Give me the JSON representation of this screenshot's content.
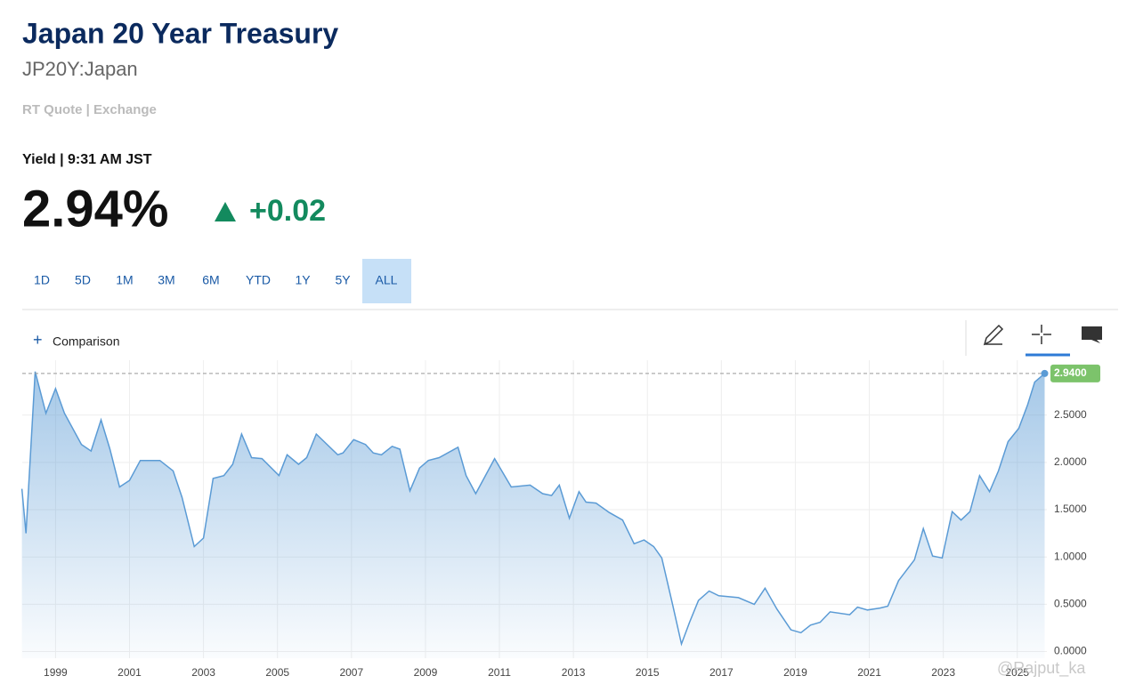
{
  "header": {
    "title": "Japan 20 Year Treasury",
    "symbol": "JP20Y:Japan",
    "quote_type": "RT Quote | Exchange",
    "yield_label": "Yield | 9:31 AM JST",
    "price": "2.94%",
    "change": "+0.02"
  },
  "ranges": [
    "1D",
    "5D",
    "1M",
    "3M",
    "6M",
    "YTD",
    "1Y",
    "5Y",
    "ALL"
  ],
  "toolbar": {
    "comparison": "Comparison"
  },
  "watermark": "@Rajput_ka",
  "chart_data": {
    "type": "area",
    "color": "#5b9bd5",
    "grid": true,
    "x": [
      1998.09,
      1998.2,
      1998.45,
      1998.74,
      1999.0,
      1999.24,
      1999.7,
      1999.96,
      2000.23,
      2000.47,
      2000.73,
      2001.0,
      2001.29,
      2001.82,
      2002.18,
      2002.42,
      2002.75,
      2003.0,
      2003.26,
      2003.55,
      2003.79,
      2004.03,
      2004.3,
      2004.58,
      2005.04,
      2005.26,
      2005.57,
      2005.79,
      2006.05,
      2006.63,
      2006.77,
      2007.06,
      2007.38,
      2007.59,
      2007.81,
      2008.1,
      2008.31,
      2008.58,
      2008.84,
      2009.08,
      2009.37,
      2009.88,
      2010.1,
      2010.36,
      2010.87,
      2011.32,
      2011.83,
      2012.17,
      2012.41,
      2012.62,
      2012.89,
      2013.15,
      2013.34,
      2013.61,
      2013.97,
      2014.33,
      2014.64,
      2014.91,
      2015.17,
      2015.39,
      2015.68,
      2015.92,
      2016.14,
      2016.38,
      2016.67,
      2016.93,
      2017.46,
      2017.89,
      2018.18,
      2018.5,
      2018.88,
      2019.15,
      2019.41,
      2019.67,
      2019.94,
      2020.47,
      2020.68,
      2020.95,
      2021.29,
      2021.5,
      2021.79,
      2022.22,
      2022.46,
      2022.71,
      2022.97,
      2023.24,
      2023.48,
      2023.72,
      2023.98,
      2024.25,
      2024.49,
      2024.75,
      2025.04,
      2025.28,
      2025.47,
      2025.74
    ],
    "values": [
      1.72,
      1.25,
      2.96,
      2.52,
      2.78,
      2.52,
      2.19,
      2.12,
      2.45,
      2.14,
      1.74,
      1.81,
      2.02,
      2.02,
      1.91,
      1.63,
      1.11,
      1.2,
      1.83,
      1.86,
      1.98,
      2.3,
      2.05,
      2.04,
      1.86,
      2.08,
      1.98,
      2.05,
      2.3,
      2.08,
      2.1,
      2.24,
      2.19,
      2.1,
      2.08,
      2.17,
      2.14,
      1.7,
      1.94,
      2.02,
      2.05,
      2.16,
      1.86,
      1.67,
      2.04,
      1.74,
      1.76,
      1.67,
      1.65,
      1.76,
      1.41,
      1.69,
      1.58,
      1.57,
      1.47,
      1.39,
      1.14,
      1.18,
      1.11,
      0.99,
      0.5,
      0.08,
      0.31,
      0.54,
      0.64,
      0.59,
      0.57,
      0.5,
      0.67,
      0.45,
      0.23,
      0.2,
      0.28,
      0.31,
      0.42,
      0.39,
      0.47,
      0.44,
      0.46,
      0.48,
      0.75,
      0.97,
      1.3,
      1.01,
      0.99,
      1.48,
      1.39,
      1.48,
      1.86,
      1.69,
      1.91,
      2.22,
      2.36,
      2.61,
      2.85,
      2.94
    ],
    "xlim": [
      1998.1,
      2025.8
    ],
    "xticks": [
      1999,
      2001,
      2003,
      2005,
      2007,
      2009,
      2011,
      2013,
      2015,
      2017,
      2019,
      2021,
      2023,
      2025
    ],
    "ylim": [
      -0.07,
      3.08
    ],
    "yticks": [
      {
        "value": 0,
        "label": "0.0000"
      },
      {
        "value": 0.5,
        "label": "0.5000"
      },
      {
        "value": 1,
        "label": "1.0000"
      },
      {
        "value": 1.5,
        "label": "1.5000"
      },
      {
        "value": 2,
        "label": "2.0000"
      },
      {
        "value": 2.5,
        "label": "2.5000"
      }
    ],
    "last_marker": {
      "value": 2.94,
      "label": "2.9400"
    }
  }
}
